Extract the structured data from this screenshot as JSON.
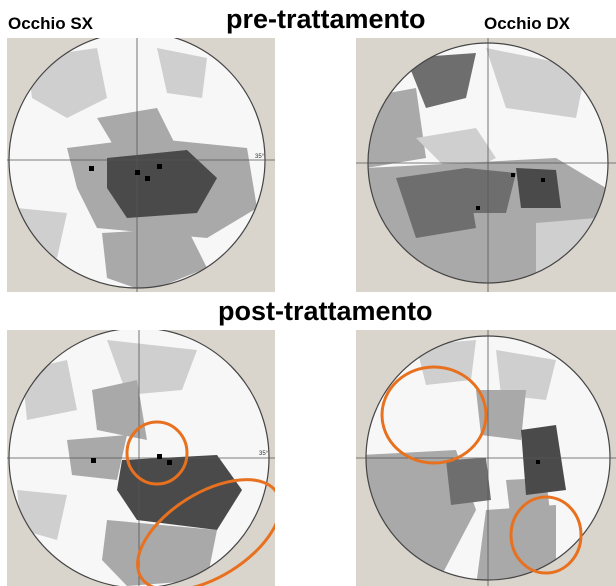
{
  "labels": {
    "left_eye": "Occhio SX",
    "right_eye": "Occhio DX",
    "pre": "pre-trattamento",
    "post": "post-trattamento"
  },
  "axis_label": "35°",
  "colors": {
    "surround": "#d9d4cc",
    "field_bg": "#f7f7f7",
    "light": "#cfcfcf",
    "mid": "#a9a9a9",
    "dark": "#6e6e6e",
    "darker": "#4a4a4a",
    "annotation": "#e8711f"
  }
}
